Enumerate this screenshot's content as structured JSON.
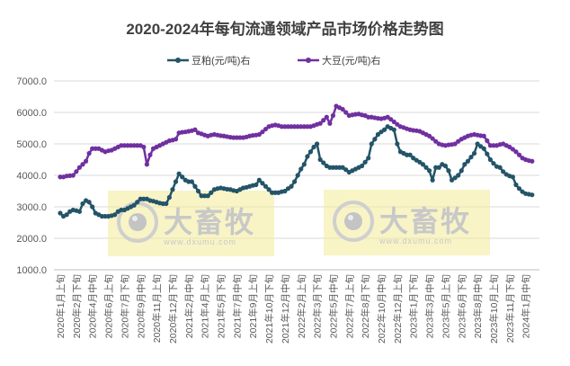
{
  "chart_data": {
    "type": "line",
    "title": "2020-2024年每旬流通领域产品市场价格走势图",
    "xlabel": "",
    "ylabel": "",
    "ylim": [
      1000,
      7000
    ],
    "y_ticks": [
      "7000.0",
      "6000.0",
      "5000.0",
      "4000.0",
      "3000.0",
      "2000.0",
      "1000.0"
    ],
    "y_tick_values": [
      7000,
      6000,
      5000,
      4000,
      3000,
      2000,
      1000
    ],
    "grid": true,
    "legend_position": "top",
    "x_tick_every": 5,
    "x_tick_labels": [
      "2020年1月上旬",
      "2020年2月下旬",
      "2020年4月中旬",
      "2020年6月上旬",
      "2020年7月下旬",
      "2020年9月中旬",
      "2020年11月上旬",
      "2020年12月下旬",
      "2021年2月中旬",
      "2021年4月上旬",
      "2021年5月下旬",
      "2021年7月中旬",
      "2021年9月上旬",
      "2021年10月下旬",
      "2021年12月中旬",
      "2022年2月上旬",
      "2022年3月下旬",
      "2022年5月中旬",
      "2022年7月上旬",
      "2022年8月下旬",
      "2022年10月中旬",
      "2022年12月上旬",
      "2023年1月下旬",
      "2023年3月中旬",
      "2023年5月上旬",
      "2023年6月下旬",
      "2023年8月中旬",
      "2023年10月上旬",
      "2023年11月下旬",
      "2024年1月中旬"
    ],
    "series": [
      {
        "name": "豆粕(元/吨)右",
        "color": "#235468",
        "values": [
          2800,
          2700,
          2750,
          2850,
          2900,
          2880,
          2850,
          3100,
          3200,
          3150,
          3000,
          2800,
          2750,
          2700,
          2700,
          2700,
          2720,
          2750,
          2850,
          2900,
          2900,
          2950,
          3000,
          3050,
          3150,
          3250,
          3250,
          3250,
          3200,
          3180,
          3150,
          3120,
          3100,
          3100,
          3300,
          3550,
          3800,
          4050,
          3950,
          3850,
          3800,
          3800,
          3650,
          3500,
          3350,
          3350,
          3350,
          3450,
          3550,
          3580,
          3600,
          3580,
          3560,
          3550,
          3520,
          3500,
          3550,
          3600,
          3620,
          3650,
          3680,
          3700,
          3850,
          3750,
          3650,
          3550,
          3450,
          3450,
          3450,
          3480,
          3500,
          3580,
          3650,
          3800,
          4000,
          4200,
          4350,
          4600,
          4750,
          4900,
          5000,
          4500,
          4400,
          4300,
          4250,
          4250,
          4250,
          4250,
          4250,
          4180,
          4100,
          4150,
          4200,
          4250,
          4300,
          4420,
          4550,
          5000,
          5150,
          5300,
          5380,
          5450,
          5550,
          5500,
          5450,
          5000,
          4750,
          4700,
          4650,
          4650,
          4550,
          4480,
          4420,
          4350,
          4250,
          4150,
          3850,
          4250,
          4250,
          4350,
          4300,
          4150,
          3850,
          3920,
          4000,
          4150,
          4350,
          4450,
          4580,
          4700,
          5000,
          4920,
          4850,
          4680,
          4500,
          4380,
          4280,
          4250,
          4120,
          4030,
          3980,
          3950,
          3700,
          3580,
          3480,
          3420,
          3400,
          3380
        ]
      },
      {
        "name": "大豆(元/吨)右",
        "color": "#7030a0",
        "values": [
          3950,
          3950,
          3980,
          3990,
          4000,
          4120,
          4250,
          4350,
          4450,
          4700,
          4850,
          4850,
          4850,
          4800,
          4750,
          4780,
          4800,
          4850,
          4900,
          4950,
          4950,
          4950,
          4950,
          4950,
          4950,
          4950,
          4900,
          4350,
          4650,
          4850,
          4900,
          4950,
          5000,
          5050,
          5100,
          5120,
          5150,
          5350,
          5370,
          5380,
          5400,
          5420,
          5450,
          5350,
          5320,
          5280,
          5250,
          5280,
          5300,
          5280,
          5260,
          5250,
          5230,
          5210,
          5200,
          5200,
          5200,
          5200,
          5220,
          5250,
          5270,
          5280,
          5300,
          5380,
          5470,
          5550,
          5580,
          5600,
          5580,
          5550,
          5550,
          5550,
          5550,
          5550,
          5550,
          5550,
          5550,
          5550,
          5550,
          5580,
          5620,
          5650,
          5750,
          5850,
          5650,
          5900,
          6200,
          6150,
          6100,
          6000,
          5900,
          5920,
          5940,
          5950,
          5920,
          5900,
          5850,
          5850,
          5830,
          5810,
          5800,
          5820,
          5850,
          5780,
          5700,
          5620,
          5550,
          5520,
          5480,
          5450,
          5430,
          5420,
          5400,
          5350,
          5300,
          5250,
          5170,
          5080,
          5000,
          4970,
          4950,
          4970,
          4980,
          5000,
          5080,
          5150,
          5200,
          5250,
          5280,
          5300,
          5280,
          5260,
          5250,
          5100,
          4950,
          4950,
          4950,
          4980,
          5000,
          4950,
          4900,
          4830,
          4750,
          4650,
          4550,
          4500,
          4470,
          4450
        ]
      }
    ]
  },
  "watermark": {
    "brand": "大畜牧",
    "url": "www.dxumu.com"
  }
}
